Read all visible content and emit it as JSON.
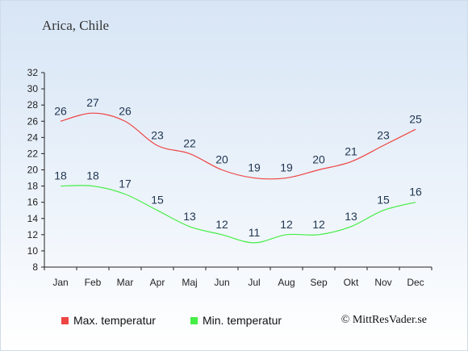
{
  "header": {
    "location": "Arica, Chile"
  },
  "footer": {
    "copyright": "© MittResVader.se"
  },
  "colors": {
    "max": "#ee4444",
    "min": "#44ee44",
    "axis": "#222222",
    "label": "#1f3550"
  },
  "chart_data": {
    "type": "line",
    "title": "Arica, Chile",
    "categories": [
      "Jan",
      "Feb",
      "Mar",
      "Apr",
      "Maj",
      "Jun",
      "Jul",
      "Aug",
      "Sep",
      "Okt",
      "Nov",
      "Dec"
    ],
    "ylim": [
      8,
      32
    ],
    "yticks": [
      8,
      10,
      12,
      14,
      16,
      18,
      20,
      22,
      24,
      26,
      28,
      30,
      32
    ],
    "grid": false,
    "legend_position": "bottom-left",
    "series": [
      {
        "name": "Max. temperatur",
        "color": "#ee4444",
        "values": [
          26,
          27,
          26,
          23,
          22,
          20,
          19,
          19,
          20,
          21,
          23,
          25
        ]
      },
      {
        "name": "Min. temperatur",
        "color": "#44ee44",
        "values": [
          18,
          18,
          17,
          15,
          13,
          12,
          11,
          12,
          12,
          13,
          15,
          16
        ]
      }
    ]
  }
}
